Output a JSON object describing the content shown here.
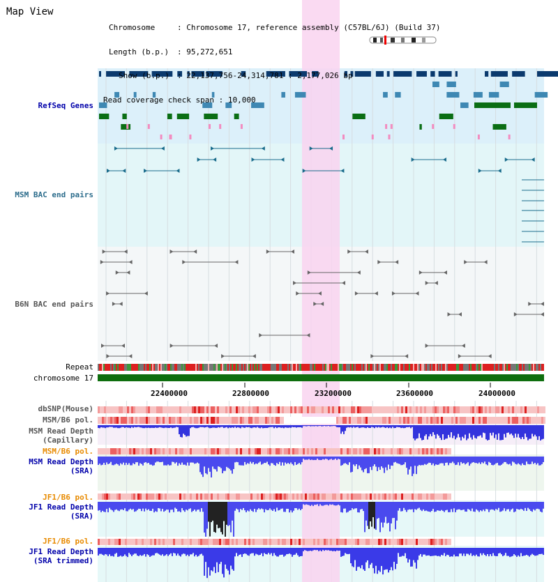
{
  "title": "Map View",
  "info": {
    "chromosome_label": "Chromosome",
    "chromosome_value": "Chromosome 17, reference assembly (C57BL/6J) (Build 37)",
    "length_label": "Length (b.p.)",
    "length_value": "95,272,651",
    "show_label": "Show (b.p.)",
    "show_value": "22,137,756-24,314,781 : 2,177,026 bp",
    "span_label": "Read coverage check span",
    "span_value": "10,000"
  },
  "tracks": {
    "refseq": "RefSeq Genes",
    "msm_bac": "MSM BAC end pairs",
    "b6n_bac": "B6N BAC end pairs",
    "repeat": "Repeat",
    "chromosome": "chromosome 17",
    "dbsnp": "dbSNP(Mouse)",
    "msm_b6_pol_1": "MSM/B6 pol.",
    "msm_depth_cap_1": "MSM Read Depth",
    "msm_depth_cap_2": "(Capillary)",
    "msm_b6_pol_2": "MSM/B6 pol.",
    "msm_depth_sra_1": "MSM Read Depth",
    "msm_depth_sra_2": "(SRA)",
    "jf1_b6_pol_1": "JF1/B6 pol.",
    "jf1_depth_sra_1": "JF1 Read Depth",
    "jf1_depth_sra_2": "(SRA)",
    "jf1_b6_pol_2": "JF1/B6 pol.",
    "jf1_depth_trim_1": "JF1 Read Depth",
    "jf1_depth_trim_2": "(SRA trimmed)"
  },
  "axis": {
    "ticks": [
      "22400000",
      "22800000",
      "23200000",
      "23600000",
      "24000000"
    ]
  },
  "colors": {
    "highlight": "#f9d3f0",
    "refseq_bg": "#dcf0fa",
    "msm_bg": "#e3f6f8",
    "b6n_bg": "#f4f7f8",
    "gene_navy": "#0b3a6e",
    "gene_teal": "#3e88b3",
    "gene_green": "#0a6e14",
    "gene_pink": "#f28cc0",
    "bac_msm": "#1a6c8c",
    "bac_b6n": "#666666",
    "chromosome": "#0e6e0e",
    "depth_blue": "#4a4aee",
    "depth_dark": "#222222"
  }
}
